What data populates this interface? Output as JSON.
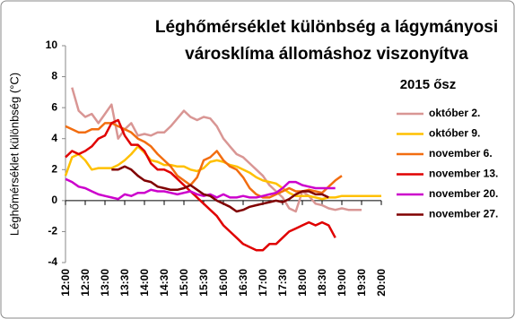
{
  "chart_data": {
    "type": "line",
    "title": [
      "Léghőmérséklet különbség a lágymányosi",
      "városklíma állomáshoz viszonyítva"
    ],
    "subtitle": "2015 ősz",
    "y_label": "Léghőmérséklet különbség (°C)",
    "categories": [
      "12:00",
      null,
      null,
      "12:30",
      null,
      null,
      "13:00",
      null,
      null,
      "13:30",
      null,
      null,
      "14:00",
      null,
      null,
      "14:30",
      null,
      null,
      "15:00",
      null,
      null,
      "15:30",
      null,
      null,
      "16:00",
      null,
      null,
      "16:30",
      null,
      null,
      "17:00",
      null,
      null,
      "17:30",
      null,
      null,
      "18:00",
      null,
      null,
      "18:30",
      null,
      null,
      "19:00",
      null,
      null,
      "19:30",
      null,
      null,
      "20:00"
    ],
    "ylim": [
      -4,
      10
    ],
    "yticks": [
      -4,
      -2,
      0,
      2,
      4,
      6,
      8,
      10
    ],
    "legend": "right",
    "series": [
      {
        "name": "október 2.",
        "color": "#d99694",
        "values": [
          null,
          7.3,
          5.8,
          5.4,
          5.6,
          5.0,
          5.6,
          6.2,
          4.0,
          4.6,
          5.0,
          4.2,
          4.3,
          4.2,
          4.4,
          4.4,
          4.8,
          5.3,
          5.8,
          5.4,
          5.2,
          5.4,
          5.3,
          4.8,
          4.0,
          3.5,
          3.0,
          2.8,
          2.4,
          2.0,
          1.6,
          1.0,
          0.6,
          0.2,
          -0.5,
          -0.7,
          0.6,
          0.3,
          -0.2,
          -0.3,
          -0.5,
          -0.6,
          -0.5,
          -0.6,
          -0.6,
          -0.6,
          null,
          null,
          null
        ]
      },
      {
        "name": "október 9.",
        "color": "#ffc000",
        "values": [
          1.6,
          2.8,
          3.0,
          2.6,
          2.0,
          2.1,
          2.1,
          2.1,
          2.3,
          2.6,
          3.0,
          3.5,
          3.1,
          2.6,
          2.5,
          2.3,
          2.3,
          2.2,
          2.2,
          2.0,
          1.9,
          2.1,
          2.5,
          2.6,
          2.5,
          2.3,
          2.2,
          2.0,
          1.8,
          1.5,
          1.3,
          1.2,
          1.1,
          0.8,
          0.5,
          0.3,
          0.3,
          0.3,
          0.2,
          0.1,
          0.2,
          0.2,
          0.3,
          0.3,
          0.3,
          0.3,
          0.3,
          0.3,
          0.3
        ]
      },
      {
        "name": "november 6.",
        "color": "#f26d10",
        "values": [
          4.8,
          4.6,
          4.4,
          4.4,
          4.6,
          4.6,
          5.0,
          5.0,
          4.8,
          4.6,
          4.4,
          4.0,
          3.8,
          3.5,
          3.0,
          2.6,
          2.2,
          1.6,
          1.3,
          1.0,
          1.5,
          2.6,
          2.8,
          3.2,
          2.6,
          2.2,
          2.0,
          1.5,
          0.8,
          0.4,
          0.2,
          0.2,
          0.4,
          0.6,
          0.8,
          0.6,
          0.6,
          0.7,
          0.6,
          0.5,
          0.9,
          1.3,
          1.6,
          null,
          null,
          null,
          null,
          null,
          null
        ]
      },
      {
        "name": "november 13.",
        "color": "#e00000",
        "values": [
          2.8,
          3.2,
          3.0,
          3.2,
          3.5,
          4.0,
          4.2,
          5.0,
          5.2,
          4.2,
          3.6,
          3.6,
          3.2,
          2.4,
          2.0,
          2.0,
          1.8,
          1.4,
          1.0,
          0.6,
          0.2,
          -0.2,
          -0.6,
          -1.0,
          -1.6,
          -2.0,
          -2.4,
          -2.8,
          -3.0,
          -3.2,
          -3.2,
          -2.8,
          -2.8,
          -2.4,
          -2.0,
          -1.8,
          -1.6,
          -1.4,
          -1.6,
          -1.4,
          -1.6,
          -2.4,
          null,
          null,
          null,
          null,
          null,
          null,
          null
        ]
      },
      {
        "name": "november 20.",
        "color": "#cc00cc",
        "values": [
          1.4,
          1.2,
          0.9,
          0.8,
          0.6,
          0.4,
          0.3,
          0.2,
          0.1,
          0.4,
          0.3,
          0.5,
          0.5,
          0.7,
          0.6,
          0.6,
          0.5,
          0.4,
          0.5,
          0.6,
          0.4,
          0.3,
          0.4,
          0.2,
          0.4,
          0.2,
          0.2,
          0.3,
          0.2,
          0.2,
          0.3,
          0.4,
          0.5,
          0.8,
          1.2,
          1.2,
          1.0,
          0.9,
          0.8,
          0.8,
          0.8,
          0.8,
          null,
          null,
          null,
          null,
          null,
          null,
          null
        ]
      },
      {
        "name": "november 27.",
        "color": "#800000",
        "values": [
          null,
          null,
          null,
          null,
          null,
          null,
          null,
          2.0,
          2.0,
          2.2,
          2.0,
          1.6,
          1.3,
          1.2,
          0.9,
          0.8,
          0.7,
          0.7,
          0.8,
          1.0,
          0.7,
          0.4,
          0.3,
          0.0,
          -0.2,
          -0.4,
          -0.7,
          -0.6,
          -0.4,
          -0.3,
          -0.2,
          -0.1,
          0.0,
          -0.1,
          0.1,
          0.4,
          0.6,
          0.6,
          0.4,
          0.4,
          0.2,
          null,
          null,
          null,
          null,
          null,
          null,
          null,
          null
        ]
      }
    ]
  }
}
